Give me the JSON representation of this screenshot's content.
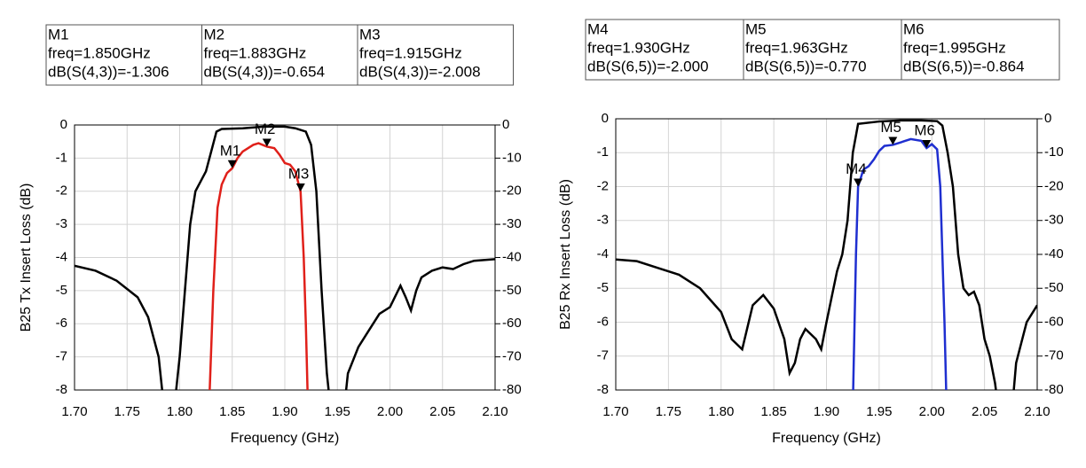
{
  "chart_data": [
    {
      "type": "line",
      "ylabel": "B25 Tx Insert Loss (dB)",
      "ylabel_color": "#e0201a",
      "xlabel": "Frequency (GHz)",
      "xlim": [
        1.7,
        2.1
      ],
      "xticks": [
        {
          "value": 1.7,
          "label": "1.70"
        },
        {
          "value": 1.75,
          "label": "1.75"
        },
        {
          "value": 1.8,
          "label": "1.80"
        },
        {
          "value": 1.85,
          "label": "1.85"
        },
        {
          "value": 1.9,
          "label": "1.90"
        },
        {
          "value": 1.95,
          "label": "1.95"
        },
        {
          "value": 2.0,
          "label": "2.00"
        },
        {
          "value": 2.05,
          "label": "2.05"
        },
        {
          "value": 2.1,
          "label": "2.10"
        }
      ],
      "ylim": [
        -8,
        0
      ],
      "yticks": [
        0,
        -1,
        -2,
        -3,
        -4,
        -5,
        -6,
        -7,
        -8
      ],
      "y2lim": [
        -80,
        0
      ],
      "y2ticks": [
        0,
        -10,
        -20,
        -30,
        -40,
        -50,
        -60,
        -70,
        -80
      ],
      "grid": true,
      "series": [
        {
          "color": "#000000",
          "axis": "y2",
          "x": [
            1.7,
            1.72,
            1.74,
            1.76,
            1.77,
            1.78,
            1.785,
            1.795,
            1.8,
            1.805,
            1.81,
            1.815,
            1.82,
            1.825,
            1.83,
            1.835,
            1.84,
            1.86,
            1.88,
            1.9,
            1.91,
            1.92,
            1.925,
            1.93,
            1.935,
            1.94,
            1.945,
            1.955,
            1.96,
            1.97,
            1.98,
            1.99,
            2.0,
            2.01,
            2.015,
            2.02,
            2.025,
            2.03,
            2.04,
            2.05,
            2.06,
            2.07,
            2.08,
            2.1
          ],
          "values": [
            -42.5,
            -44,
            -47,
            -52,
            -58,
            -70,
            -85,
            -85,
            -70,
            -50,
            -30,
            -20,
            -17,
            -14,
            -8,
            -2,
            -1.2,
            -1.0,
            -0.5,
            -0.5,
            -1.0,
            -2,
            -6,
            -20,
            -50,
            -75,
            -90,
            -90,
            -75,
            -67,
            -62,
            -57,
            -55,
            -48.5,
            -52,
            -56,
            -50,
            -46,
            -44,
            -43,
            -43.5,
            -42,
            -41,
            -40.5
          ]
        },
        {
          "color": "#e0201a",
          "axis": "y",
          "x": [
            1.828,
            1.832,
            1.836,
            1.84,
            1.845,
            1.85,
            1.855,
            1.86,
            1.87,
            1.875,
            1.883,
            1.89,
            1.895,
            1.9,
            1.905,
            1.91,
            1.915,
            1.918,
            1.92,
            1.922
          ],
          "values": [
            -8.5,
            -5,
            -2.5,
            -1.8,
            -1.45,
            -1.306,
            -1.0,
            -0.8,
            -0.6,
            -0.55,
            -0.654,
            -0.7,
            -0.9,
            -1.15,
            -1.2,
            -1.4,
            -2.008,
            -4,
            -6,
            -8.5
          ]
        }
      ],
      "markers": [
        {
          "name": "M1",
          "freq": 1.85,
          "value": -1.306,
          "freq_label": "freq=1.850GHz",
          "value_label": "dB(S(4,3))=-1.306"
        },
        {
          "name": "M2",
          "freq": 1.883,
          "value": -0.654,
          "freq_label": "freq=1.883GHz",
          "value_label": "dB(S(4,3))=-0.654"
        },
        {
          "name": "M3",
          "freq": 1.915,
          "value": -2.008,
          "freq_label": "freq=1.915GHz",
          "value_label": "dB(S(4,3))=-2.008"
        }
      ]
    },
    {
      "type": "line",
      "ylabel": "B25 Rx Insert Loss (dB)",
      "ylabel_color": "#1f2fd0",
      "xlabel": "Frequency (GHz)",
      "xlim": [
        1.7,
        2.1
      ],
      "xticks": [
        {
          "value": 1.7,
          "label": "1.70"
        },
        {
          "value": 1.75,
          "label": "1.75"
        },
        {
          "value": 1.8,
          "label": "1.80"
        },
        {
          "value": 1.85,
          "label": "1.85"
        },
        {
          "value": 1.9,
          "label": "1.90"
        },
        {
          "value": 1.95,
          "label": "1.95"
        },
        {
          "value": 2.0,
          "label": "2.00"
        },
        {
          "value": 2.05,
          "label": "2.05"
        },
        {
          "value": 2.1,
          "label": "2.10"
        }
      ],
      "ylim": [
        -8,
        0
      ],
      "yticks": [
        0,
        -1,
        -2,
        -3,
        -4,
        -5,
        -6,
        -7,
        -8
      ],
      "y2lim": [
        -80,
        0
      ],
      "y2ticks": [
        0,
        -10,
        -20,
        -30,
        -40,
        -50,
        -60,
        -70,
        -80
      ],
      "grid": true,
      "series": [
        {
          "color": "#000000",
          "axis": "y2",
          "x": [
            1.7,
            1.72,
            1.74,
            1.76,
            1.78,
            1.8,
            1.81,
            1.82,
            1.83,
            1.84,
            1.85,
            1.86,
            1.865,
            1.87,
            1.875,
            1.88,
            1.89,
            1.895,
            1.9,
            1.91,
            1.915,
            1.92,
            1.925,
            1.93,
            1.95,
            1.97,
            1.99,
            2.005,
            2.01,
            2.015,
            2.02,
            2.025,
            2.03,
            2.035,
            2.04,
            2.045,
            2.05,
            2.055,
            2.06,
            2.065,
            2.075,
            2.08,
            2.09,
            2.1
          ],
          "values": [
            -41.5,
            -42,
            -44,
            -46,
            -50,
            -57,
            -65,
            -68,
            -55,
            -52,
            -56,
            -65,
            -75,
            -72,
            -65,
            -62,
            -65,
            -68,
            -60,
            -45,
            -40,
            -30,
            -10,
            -1.5,
            -0.8,
            -0.5,
            -0.5,
            -0.7,
            -2,
            -10,
            -20,
            -40,
            -50,
            -52,
            -51,
            -55,
            -65,
            -70,
            -78,
            -90,
            -90,
            -72,
            -60,
            -55
          ]
        },
        {
          "color": "#1f2fd0",
          "axis": "y",
          "x": [
            1.925,
            1.928,
            1.93,
            1.935,
            1.94,
            1.945,
            1.95,
            1.955,
            1.963,
            1.97,
            1.975,
            1.98,
            1.99,
            1.995,
            2.0,
            2.005,
            2.008,
            2.01,
            2.012,
            2.014
          ],
          "values": [
            -8.5,
            -4,
            -2.0,
            -1.5,
            -1.4,
            -1.2,
            -0.95,
            -0.8,
            -0.77,
            -0.7,
            -0.65,
            -0.6,
            -0.65,
            -0.864,
            -0.75,
            -0.9,
            -2,
            -4,
            -6,
            -8.5
          ]
        }
      ],
      "markers": [
        {
          "name": "M4",
          "freq": 1.93,
          "value": -2.0,
          "freq_label": "freq=1.930GHz",
          "value_label": "dB(S(6,5))=-2.000"
        },
        {
          "name": "M5",
          "freq": 1.963,
          "value": -0.77,
          "freq_label": "freq=1.963GHz",
          "value_label": "dB(S(6,5))=-0.770"
        },
        {
          "name": "M6",
          "freq": 1.995,
          "value": -0.864,
          "freq_label": "freq=1.995GHz",
          "value_label": "dB(S(6,5))=-0.864"
        }
      ]
    }
  ]
}
